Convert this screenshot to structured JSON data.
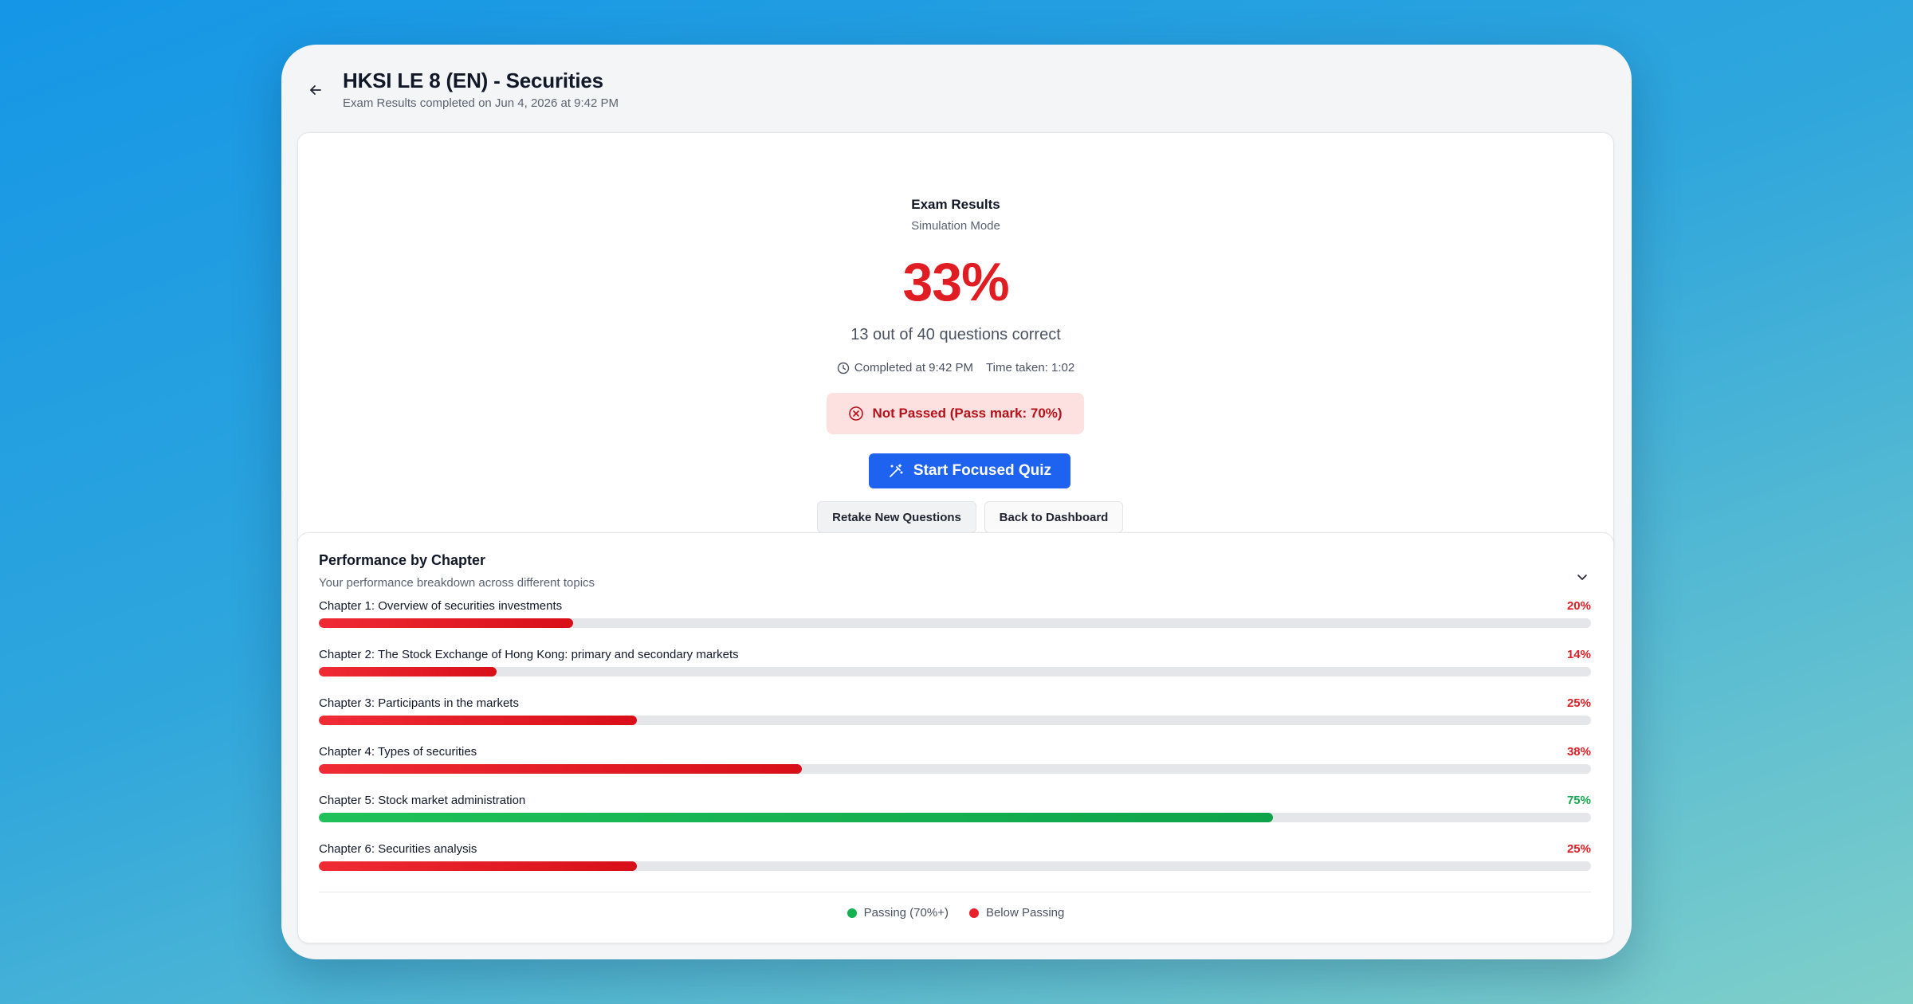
{
  "header": {
    "title": "HKSI LE 8 (EN) - Securities",
    "subtitle": "Exam Results completed on Jun 4, 2026 at 9:42 PM"
  },
  "results": {
    "title": "Exam Results",
    "mode": "Simulation Mode",
    "score": "33%",
    "questions_correct": "13 out of 40 questions correct",
    "completed_at": "Completed at 9:42 PM",
    "time_taken": "Time taken: 1:02",
    "status": "Not Passed (Pass mark: 70%)",
    "primary_button": "Start Focused Quiz",
    "retake_button": "Retake New Questions",
    "dashboard_button": "Back to Dashboard"
  },
  "performance": {
    "title": "Performance by Chapter",
    "subtitle": "Your performance breakdown across different topics",
    "chapters": [
      {
        "label": "Chapter 1: Overview of securities investments",
        "pct_text": "20%",
        "value": 20,
        "passing": false
      },
      {
        "label": "Chapter 2: The Stock Exchange of Hong Kong: primary and secondary markets",
        "pct_text": "14%",
        "value": 14,
        "passing": false
      },
      {
        "label": "Chapter 3: Participants in the markets",
        "pct_text": "25%",
        "value": 25,
        "passing": false
      },
      {
        "label": "Chapter 4: Types of securities",
        "pct_text": "38%",
        "value": 38,
        "passing": false
      },
      {
        "label": "Chapter 5: Stock market administration",
        "pct_text": "75%",
        "value": 75,
        "passing": true
      },
      {
        "label": "Chapter 6: Securities analysis",
        "pct_text": "25%",
        "value": 25,
        "passing": false
      }
    ],
    "legend": {
      "passing": "Passing (70%+)",
      "below": "Below Passing"
    }
  },
  "colors": {
    "fail": "#e11d24",
    "pass": "#12a84c",
    "primary": "#1d63f0"
  }
}
